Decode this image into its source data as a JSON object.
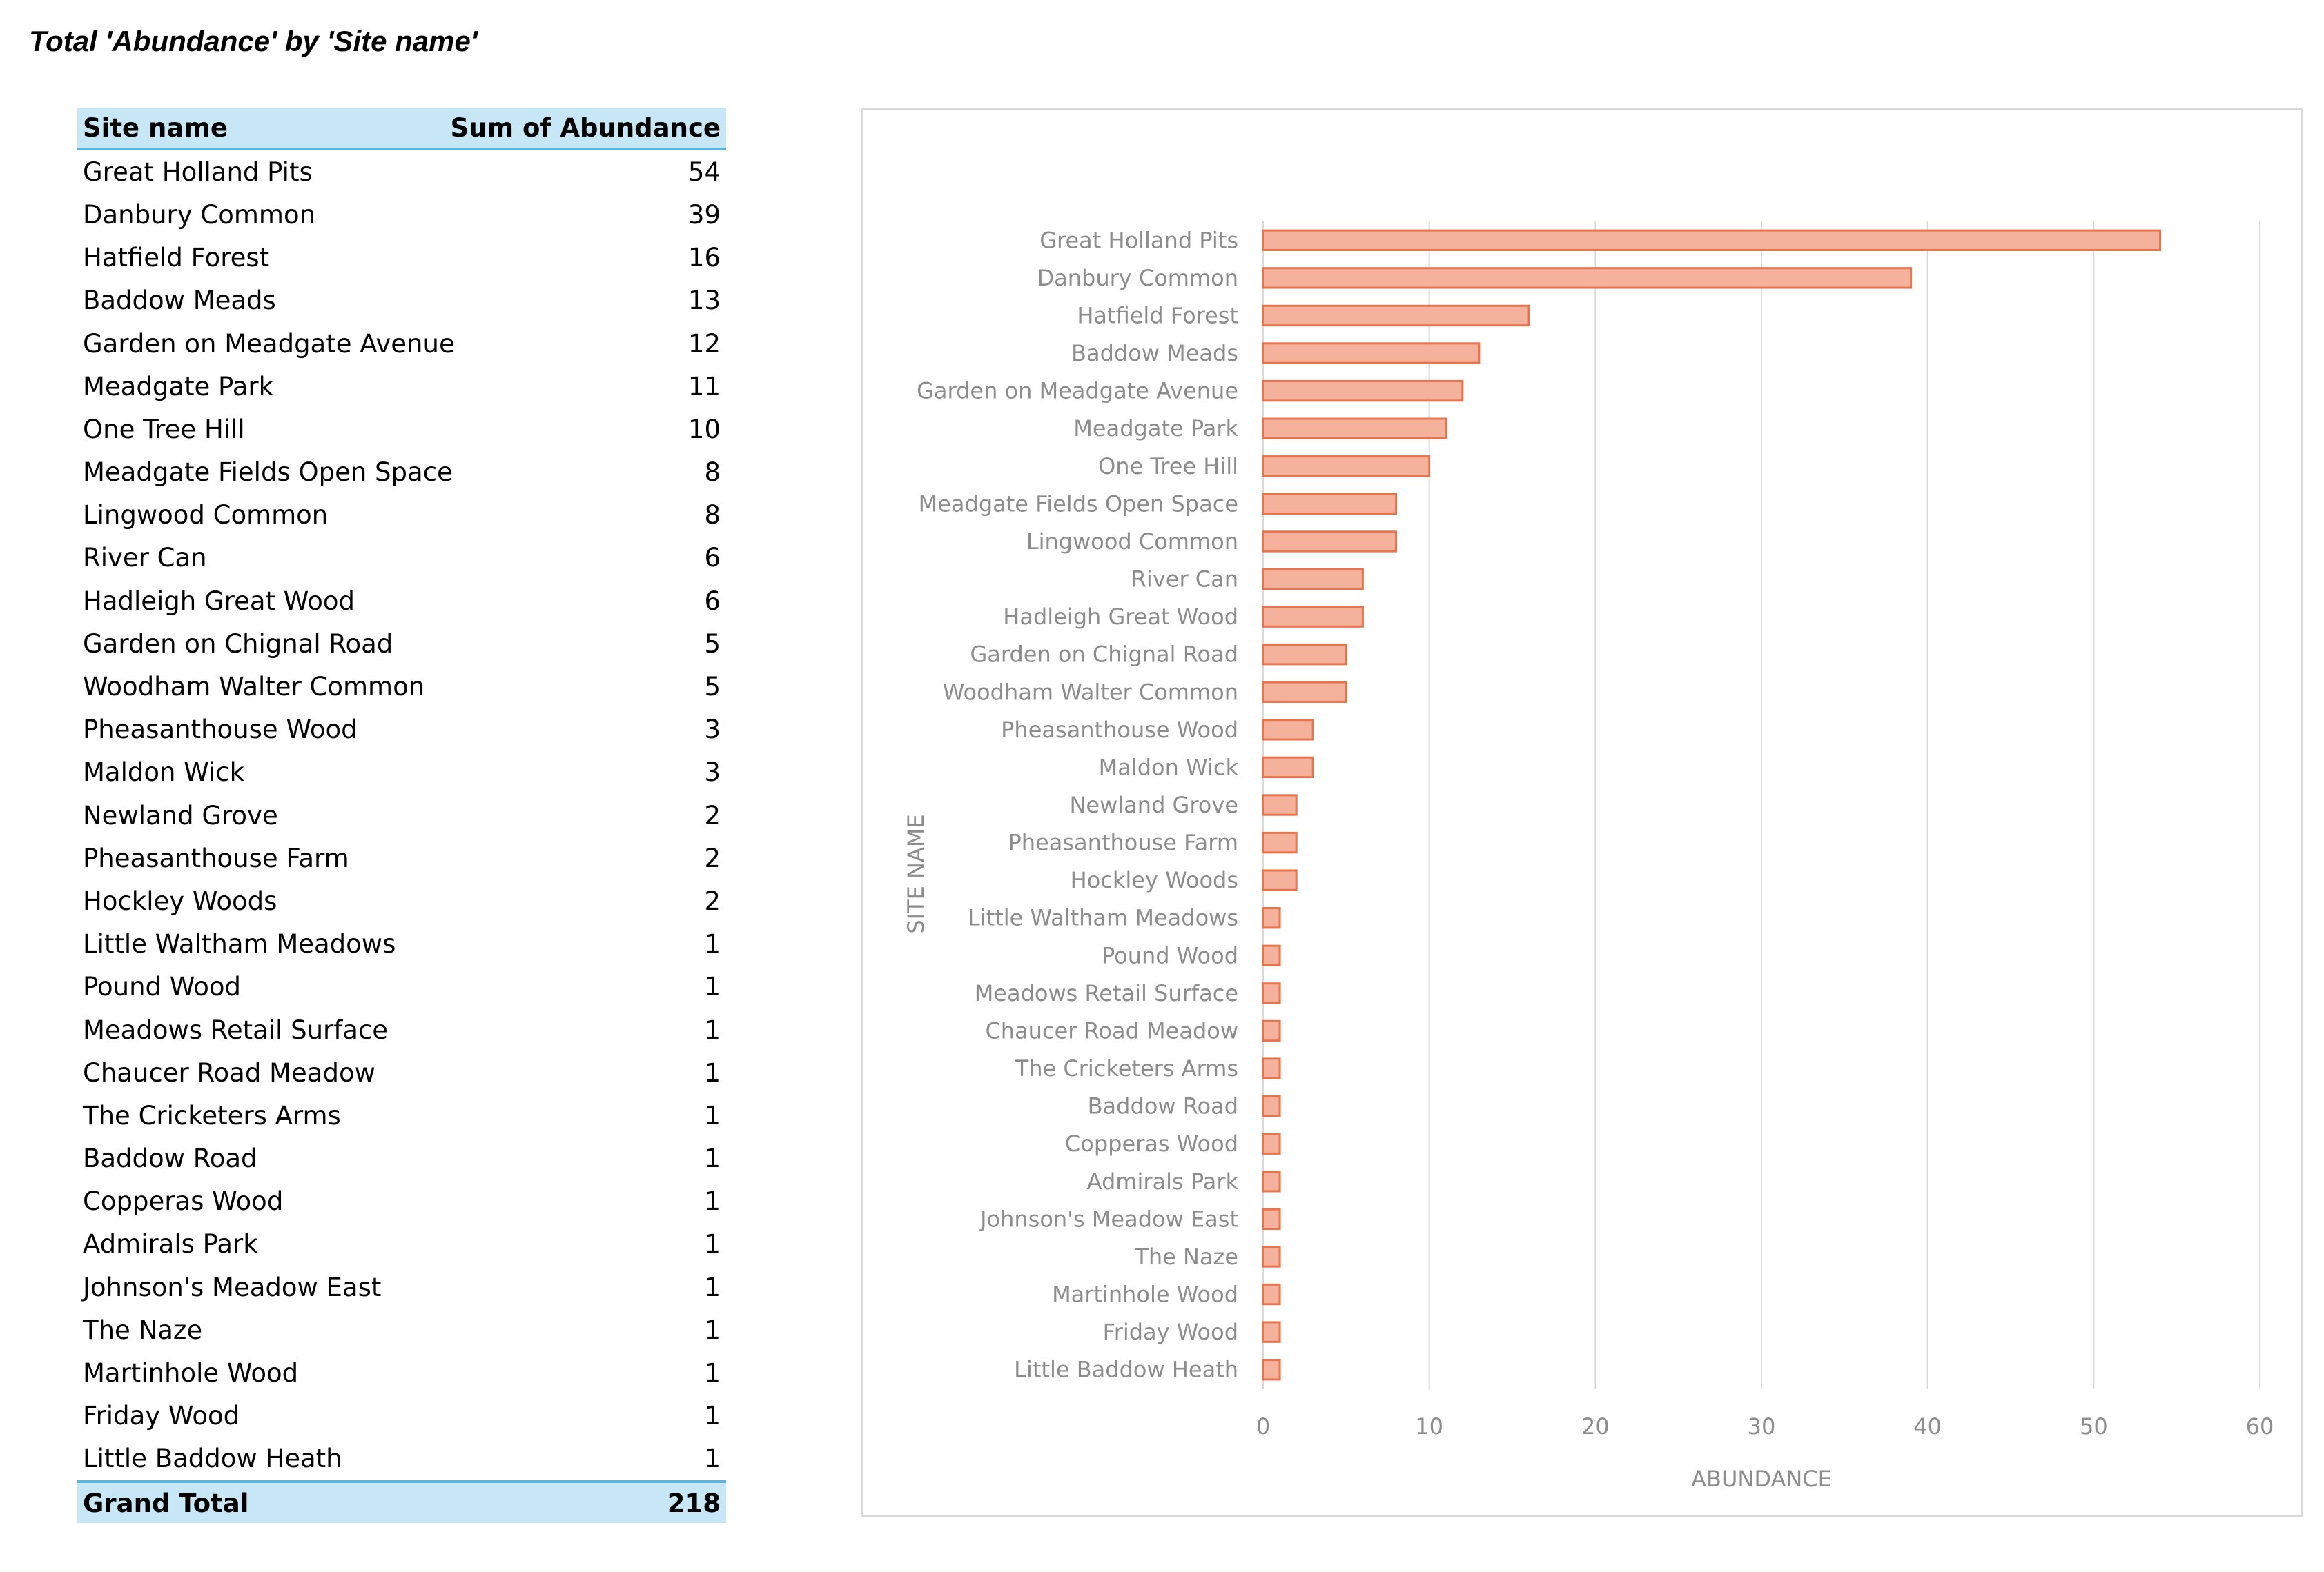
{
  "page": {
    "title": "Total 'Abundance' by 'Site name'"
  },
  "table": {
    "headers": [
      "Site name",
      "Sum of Abundance"
    ],
    "rows": [
      [
        "Great Holland Pits",
        "54"
      ],
      [
        "Danbury Common",
        "39"
      ],
      [
        "Hatfield Forest",
        "16"
      ],
      [
        "Baddow Meads",
        "13"
      ],
      [
        "Garden on Meadgate Avenue",
        "12"
      ],
      [
        "Meadgate Park",
        "11"
      ],
      [
        "One Tree Hill",
        "10"
      ],
      [
        "Meadgate Fields Open Space",
        "8"
      ],
      [
        "Lingwood Common",
        "8"
      ],
      [
        "River Can",
        "6"
      ],
      [
        "Hadleigh Great Wood",
        "6"
      ],
      [
        "Garden on Chignal Road",
        "5"
      ],
      [
        "Woodham Walter Common",
        "5"
      ],
      [
        "Pheasanthouse Wood",
        "3"
      ],
      [
        "Maldon Wick",
        "3"
      ],
      [
        "Newland Grove",
        "2"
      ],
      [
        "Pheasanthouse Farm",
        "2"
      ],
      [
        "Hockley Woods",
        "2"
      ],
      [
        "Little Waltham Meadows",
        "1"
      ],
      [
        "Pound Wood",
        "1"
      ],
      [
        "Meadows Retail Surface",
        "1"
      ],
      [
        "Chaucer Road Meadow",
        "1"
      ],
      [
        "The Cricketers Arms",
        "1"
      ],
      [
        "Baddow Road",
        "1"
      ],
      [
        "Copperas Wood",
        "1"
      ],
      [
        "Admirals Park",
        "1"
      ],
      [
        "Johnson's Meadow East",
        "1"
      ],
      [
        "The Naze",
        "1"
      ],
      [
        "Martinhole Wood",
        "1"
      ],
      [
        "Friday Wood",
        "1"
      ],
      [
        "Little Baddow Heath",
        "1"
      ]
    ],
    "total_label": "Grand Total",
    "total_value": "218"
  },
  "chart_data": {
    "type": "bar",
    "orientation": "horizontal",
    "categories": [
      "Great Holland Pits",
      "Danbury Common",
      "Hatfield Forest",
      "Baddow Meads",
      "Garden on Meadgate Avenue",
      "Meadgate Park",
      "One Tree Hill",
      "Meadgate Fields Open Space",
      "Lingwood Common",
      "River Can",
      "Hadleigh Great Wood",
      "Garden on Chignal Road",
      "Woodham Walter Common",
      "Pheasanthouse Wood",
      "Maldon Wick",
      "Newland Grove",
      "Pheasanthouse Farm",
      "Hockley Woods",
      "Little Waltham Meadows",
      "Pound Wood",
      "Meadows Retail Surface",
      "Chaucer Road Meadow",
      "The Cricketers Arms",
      "Baddow Road",
      "Copperas Wood",
      "Admirals Park",
      "Johnson's Meadow East",
      "The Naze",
      "Martinhole Wood",
      "Friday Wood",
      "Little Baddow Heath"
    ],
    "values": [
      54,
      39,
      16,
      13,
      12,
      11,
      10,
      8,
      8,
      6,
      6,
      5,
      5,
      3,
      3,
      2,
      2,
      2,
      1,
      1,
      1,
      1,
      1,
      1,
      1,
      1,
      1,
      1,
      1,
      1,
      1
    ],
    "xlabel": "ABUNDANCE",
    "ylabel": "SITE NAME",
    "xlim": [
      0,
      60
    ],
    "xticks": [
      0,
      10,
      20,
      30,
      40,
      50,
      60
    ],
    "grid": "vertical",
    "legend": "none",
    "colors": {
      "bar_fill": "#f4b19c",
      "bar_stroke": "#e8744e",
      "grid": "#d9d9d9",
      "label": "#8c8c8c"
    }
  }
}
